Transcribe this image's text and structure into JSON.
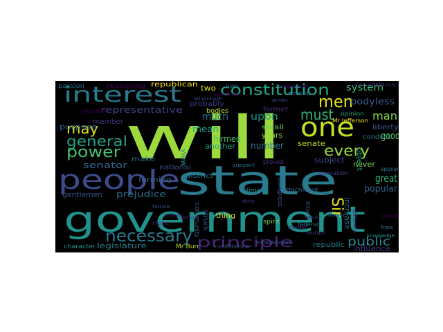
{
  "background_color": "#000000",
  "words": [
    {
      "text": "will",
      "color": "#9bd93c"
    },
    {
      "text": "state",
      "color": "#2a7b8e"
    },
    {
      "text": "government",
      "color": "#21918c"
    },
    {
      "text": "people",
      "color": "#3d4d8a"
    },
    {
      "text": "one",
      "color": "#c4e022"
    },
    {
      "text": "interest",
      "color": "#297a8e"
    },
    {
      "text": "constitution",
      "color": "#21a685"
    },
    {
      "text": "men",
      "color": "#e5e419"
    },
    {
      "text": "must",
      "color": "#2fb47c"
    },
    {
      "text": "power",
      "color": "#4ac16d"
    },
    {
      "text": "may",
      "color": "#e5e419"
    },
    {
      "text": "general",
      "color": "#1fa088"
    },
    {
      "text": "principle",
      "color": "#482576"
    },
    {
      "text": "necessary",
      "color": "#2a788e"
    },
    {
      "text": "every",
      "color": "#9dd93b"
    },
    {
      "text": "Sir",
      "color": "#e7e419"
    },
    {
      "text": "public",
      "color": "#26828e"
    },
    {
      "text": "system",
      "color": "#38b977"
    },
    {
      "text": "bodyless",
      "color": "#365c8d"
    },
    {
      "text": "man",
      "color": "#8bd646"
    },
    {
      "text": "good",
      "color": "#5ec962"
    },
    {
      "text": "great",
      "color": "#2fb47c"
    },
    {
      "text": "popular",
      "color": "#34618d"
    },
    {
      "text": "prejudice",
      "color": "#2c728e"
    },
    {
      "text": "gentlemen",
      "color": "#3b528b"
    },
    {
      "text": "representative",
      "color": "#414487"
    },
    {
      "text": "purpose",
      "color": "#33638d"
    },
    {
      "text": "senator",
      "color": "#31688e"
    },
    {
      "text": "much",
      "color": "#2a788e"
    },
    {
      "text": "upon",
      "color": "#1f998a"
    },
    {
      "text": "mean",
      "color": "#1f9e89"
    },
    {
      "text": "formed",
      "color": "#4ac16d"
    },
    {
      "text": "number",
      "color": "#2c718e"
    },
    {
      "text": "years",
      "color": "#95d840"
    },
    {
      "text": "senate",
      "color": "#b5de2b"
    },
    {
      "text": "subject",
      "color": "#3e4a89"
    },
    {
      "text": "increase",
      "color": "#306a8e"
    },
    {
      "text": "object",
      "color": "#22a884"
    },
    {
      "text": "never",
      "color": "#7ad151"
    },
    {
      "text": "influence",
      "color": "#46327e"
    },
    {
      "text": "legislature",
      "color": "#277f8e"
    },
    {
      "text": "liberty",
      "color": "#355f8d"
    },
    {
      "text": "small",
      "color": "#6ece58"
    },
    {
      "text": "another",
      "color": "#1fa188"
    },
    {
      "text": "conduct",
      "color": "#2a778e"
    },
    {
      "text": "view",
      "color": "#238a8d"
    },
    {
      "text": "make",
      "color": "#2c728e"
    },
    {
      "text": "national",
      "color": "#3b528b"
    },
    {
      "text": "forming",
      "color": "#32658e"
    },
    {
      "text": "member",
      "color": "#46337f"
    },
    {
      "text": "two",
      "color": "#e5e419"
    },
    {
      "text": "probably",
      "color": "#453781"
    },
    {
      "text": "former",
      "color": "#472d7b"
    },
    {
      "text": "republican",
      "color": "#fde725"
    },
    {
      "text": "reasoning",
      "color": "#440154"
    },
    {
      "text": "passion",
      "color": "#2d708e"
    },
    {
      "text": "bodies",
      "color": "#c2df23"
    },
    {
      "text": "thing",
      "color": "#d8e219"
    },
    {
      "text": "struck",
      "color": "#39568c"
    },
    {
      "text": "community",
      "color": "#365d8d"
    },
    {
      "text": "spirit",
      "color": "#7ad151"
    },
    {
      "text": "proved",
      "color": "#46337f"
    },
    {
      "text": "Congress",
      "color": "#3b528b"
    },
    {
      "text": "district",
      "color": "#2a788e"
    },
    {
      "text": "republic",
      "color": "#26828e"
    },
    {
      "text": "character",
      "color": "#1f968b"
    },
    {
      "text": "Mr Burr",
      "color": "#b8de29"
    },
    {
      "text": "Mr Jefferson",
      "color": "#fde725"
    },
    {
      "text": "confidence",
      "color": "#3b528b"
    },
    {
      "text": "attachment",
      "color": "#31688e"
    },
    {
      "text": "circumstance",
      "color": "#482878"
    },
    {
      "text": "opinion",
      "color": "#27ad81"
    },
    {
      "text": "operation",
      "color": "#433e85"
    },
    {
      "text": "check",
      "color": "#440154"
    },
    {
      "text": "different",
      "color": "#481f70"
    },
    {
      "text": "appear",
      "color": "#2d708e"
    },
    {
      "text": "important",
      "color": "#440154"
    },
    {
      "text": "plan",
      "color": "#2c728e"
    },
    {
      "text": "amendment",
      "color": "#440154"
    },
    {
      "text": "advantage",
      "color": "#3e4989"
    },
    {
      "text": "little",
      "color": "#365d8d"
    },
    {
      "text": "take",
      "color": "#482576"
    },
    {
      "text": "establishment",
      "color": "#3b528b"
    },
    {
      "text": "union",
      "color": "#3e4989"
    },
    {
      "text": "federal",
      "color": "#2a788e"
    },
    {
      "text": "proportion",
      "color": "#481a6c"
    },
    {
      "text": "several",
      "color": "#2e6f8e"
    },
    {
      "text": "danger",
      "color": "#46327e"
    },
    {
      "text": "knowledge",
      "color": "#20928c"
    },
    {
      "text": "secure",
      "color": "#482677"
    },
    {
      "text": "support",
      "color": "#2a788e"
    },
    {
      "text": "duty",
      "color": "#433d84"
    },
    {
      "text": "time",
      "color": "#1f948c"
    },
    {
      "text": "reason",
      "color": "#481769"
    },
    {
      "text": "house",
      "color": "#39558c"
    },
    {
      "text": "right",
      "color": "#453882"
    },
    {
      "text": "free",
      "color": "#2c718e"
    },
    {
      "text": "certain",
      "color": "#3f4788"
    },
    {
      "text": "nature",
      "color": "#2e6e8e"
    }
  ]
}
